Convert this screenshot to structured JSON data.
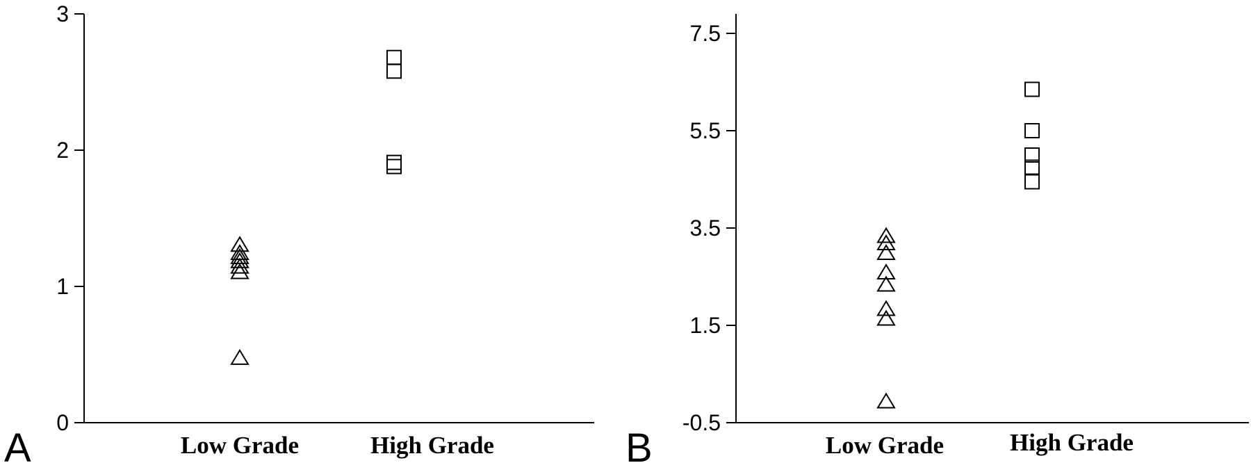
{
  "chart_data": [
    {
      "type": "scatter",
      "panel_label": "A",
      "title": "",
      "xlabel": "",
      "ylabel": "",
      "categories": [
        "Low Grade",
        "High Grade"
      ],
      "ylim": [
        0,
        3
      ],
      "yticks": [
        0,
        1,
        2,
        3
      ],
      "ytick_labels": [
        "0",
        "1",
        "2",
        "3"
      ],
      "grid": false,
      "series": [
        {
          "category": "Low Grade",
          "marker": "triangle",
          "values": [
            1.31,
            1.25,
            1.22,
            1.19,
            1.15,
            1.11,
            0.48
          ]
        },
        {
          "category": "High Grade",
          "marker": "square",
          "values": [
            2.68,
            2.58,
            1.91,
            1.88
          ]
        }
      ]
    },
    {
      "type": "scatter",
      "panel_label": "B",
      "title": "",
      "xlabel": "",
      "ylabel": "",
      "categories": [
        "Low Grade",
        "High Grade"
      ],
      "ylim": [
        -0.5,
        7.9
      ],
      "yticks": [
        -0.5,
        1.5,
        3.5,
        5.5,
        7.5
      ],
      "ytick_labels": [
        "-0.5",
        "1.5",
        "3.5",
        "5.5",
        "7.5"
      ],
      "grid": false,
      "series": [
        {
          "category": "Low Grade",
          "marker": "triangle",
          "values": [
            3.35,
            3.2,
            3.0,
            2.6,
            2.35,
            1.85,
            1.65,
            -0.05
          ]
        },
        {
          "category": "High Grade",
          "marker": "square",
          "values": [
            6.35,
            5.5,
            5.0,
            4.75,
            4.45
          ]
        }
      ]
    }
  ]
}
